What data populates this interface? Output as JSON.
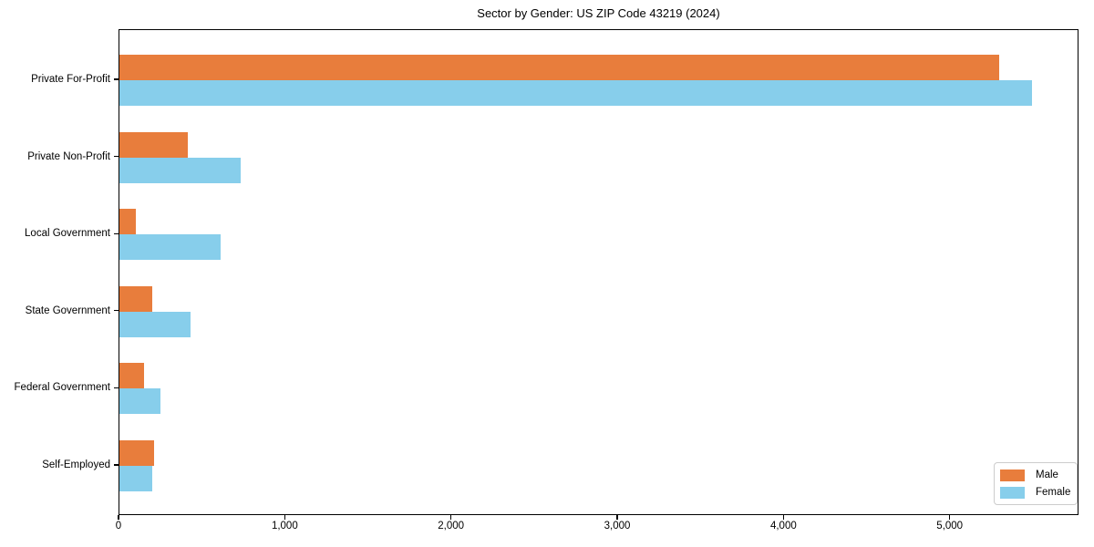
{
  "chart_data": {
    "type": "bar",
    "orientation": "horizontal",
    "title": "Sector by Gender: US ZIP Code 43219 (2024)",
    "xlabel": "",
    "ylabel": "",
    "categories": [
      "Private For-Profit",
      "Private Non-Profit",
      "Local Government",
      "State Government",
      "Federal Government",
      "Self-Employed"
    ],
    "series": [
      {
        "name": "Male",
        "color": "#e87d3c",
        "values": [
          5300,
          410,
          100,
          200,
          150,
          210
        ]
      },
      {
        "name": "Female",
        "color": "#87ceeb",
        "values": [
          5500,
          730,
          610,
          430,
          250,
          200
        ]
      }
    ],
    "xlim": [
      0,
      5775
    ],
    "xticks": [
      0,
      1000,
      2000,
      3000,
      4000,
      5000
    ],
    "xtick_labels": [
      "0",
      "1,000",
      "2,000",
      "3,000",
      "4,000",
      "5,000"
    ],
    "grid": false,
    "legend_position": "lower right",
    "plot_border_color": "#000000",
    "background_color": "#ffffff"
  }
}
